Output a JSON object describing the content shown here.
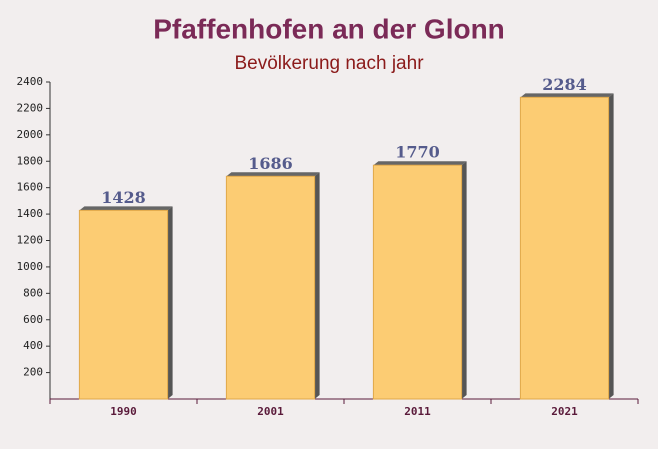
{
  "chart_data": {
    "type": "bar",
    "title": "Pfaffenhofen an der Glonn",
    "subtitle": "Bevölkerung nach jahr",
    "categories": [
      "1990",
      "2001",
      "2011",
      "2021"
    ],
    "values": [
      1428,
      1686,
      1770,
      2284
    ],
    "color": "#fcc96b",
    "ylim": [
      0,
      2400
    ],
    "yticks": [
      200,
      400,
      600,
      800,
      1000,
      1200,
      1400,
      1600,
      1800,
      2000,
      2200,
      2400
    ]
  }
}
